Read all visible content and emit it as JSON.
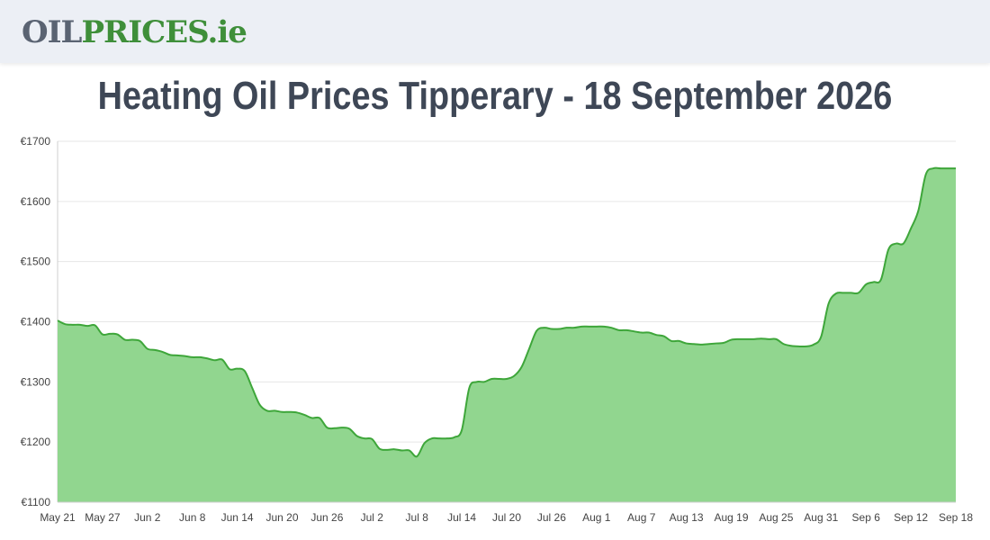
{
  "header": {
    "logo_parts": [
      "OIL",
      "PRICES",
      ".ie"
    ]
  },
  "title": "Heating Oil Prices Tipperary - 18 September 2026",
  "colors": {
    "line": "#3ea63a",
    "fill": "#91d68f",
    "grid": "#e6e6e6",
    "header_bg": "#eceff5"
  },
  "chart_data": {
    "type": "area",
    "title": "Heating Oil Prices Tipperary - 18 September 2026",
    "xlabel": "",
    "ylabel": "",
    "ylim": [
      1100,
      1700
    ],
    "yticks": [
      1100,
      1200,
      1300,
      1400,
      1500,
      1600,
      1700
    ],
    "ytick_labels": [
      "€1100",
      "€1200",
      "€1300",
      "€1400",
      "€1500",
      "€1600",
      "€1700"
    ],
    "xlim": [
      0,
      120
    ],
    "xticks": [
      {
        "x": 0,
        "label": "May 21"
      },
      {
        "x": 6,
        "label": "May 27"
      },
      {
        "x": 12,
        "label": "Jun 2"
      },
      {
        "x": 18,
        "label": "Jun 8"
      },
      {
        "x": 24,
        "label": "Jun 14"
      },
      {
        "x": 30,
        "label": "Jun 20"
      },
      {
        "x": 36,
        "label": "Jun 26"
      },
      {
        "x": 42,
        "label": "Jul 2"
      },
      {
        "x": 48,
        "label": "Jul 8"
      },
      {
        "x": 54,
        "label": "Jul 14"
      },
      {
        "x": 60,
        "label": "Jul 20"
      },
      {
        "x": 66,
        "label": "Jul 26"
      },
      {
        "x": 72,
        "label": "Aug 1"
      },
      {
        "x": 78,
        "label": "Aug 7"
      },
      {
        "x": 84,
        "label": "Aug 13"
      },
      {
        "x": 90,
        "label": "Aug 19"
      },
      {
        "x": 96,
        "label": "Aug 25"
      },
      {
        "x": 102,
        "label": "Aug 31"
      },
      {
        "x": 108,
        "label": "Sep 6"
      },
      {
        "x": 114,
        "label": "Sep 12"
      },
      {
        "x": 120,
        "label": "Sep 18"
      }
    ],
    "grid": true,
    "legend": "none",
    "series": [
      {
        "x": [
          0,
          1,
          2,
          3,
          4,
          5,
          6,
          7,
          8,
          9,
          10,
          11,
          12,
          13,
          14,
          15,
          16,
          17,
          18,
          19,
          20,
          21,
          22,
          23,
          24,
          25,
          26,
          27,
          28,
          29,
          30,
          31,
          32,
          33,
          34,
          35,
          36,
          37,
          38,
          39,
          40,
          41,
          42,
          43,
          44,
          45,
          46,
          47,
          48,
          49,
          50,
          51,
          52,
          53,
          54,
          55,
          56,
          57,
          58,
          59,
          60,
          61,
          62,
          63,
          64,
          65,
          66,
          67,
          68,
          69,
          70,
          71,
          72,
          73,
          74,
          75,
          76,
          77,
          78,
          79,
          80,
          81,
          82,
          83,
          84,
          85,
          86,
          87,
          88,
          89,
          90,
          91,
          92,
          93,
          94,
          95,
          96,
          97,
          98,
          99,
          100,
          101,
          102,
          103,
          104,
          105,
          106,
          107,
          108,
          109,
          110,
          111,
          112,
          113,
          114,
          115,
          116,
          117,
          118,
          119,
          120
        ],
        "values": [
          1402,
          1396,
          1395,
          1395,
          1393,
          1394,
          1379,
          1380,
          1379,
          1370,
          1370,
          1368,
          1355,
          1353,
          1350,
          1345,
          1344,
          1343,
          1341,
          1341,
          1339,
          1336,
          1337,
          1321,
          1322,
          1318,
          1290,
          1262,
          1252,
          1252,
          1250,
          1250,
          1249,
          1245,
          1240,
          1240,
          1224,
          1223,
          1224,
          1222,
          1210,
          1206,
          1205,
          1189,
          1187,
          1188,
          1186,
          1186,
          1176,
          1198,
          1206,
          1206,
          1206,
          1208,
          1220,
          1290,
          1300,
          1300,
          1305,
          1305,
          1305,
          1310,
          1325,
          1355,
          1385,
          1390,
          1388,
          1388,
          1390,
          1390,
          1392,
          1392,
          1392,
          1392,
          1390,
          1386,
          1386,
          1384,
          1382,
          1382,
          1378,
          1376,
          1368,
          1368,
          1364,
          1363,
          1362,
          1363,
          1364,
          1365,
          1370,
          1371,
          1371,
          1371,
          1372,
          1371,
          1371,
          1363,
          1360,
          1359,
          1359,
          1362,
          1375,
          1430,
          1447,
          1448,
          1448,
          1448,
          1462,
          1466,
          1470,
          1520,
          1530,
          1530,
          1555,
          1585,
          1645,
          1655,
          1655,
          1655,
          1655
        ]
      }
    ]
  }
}
